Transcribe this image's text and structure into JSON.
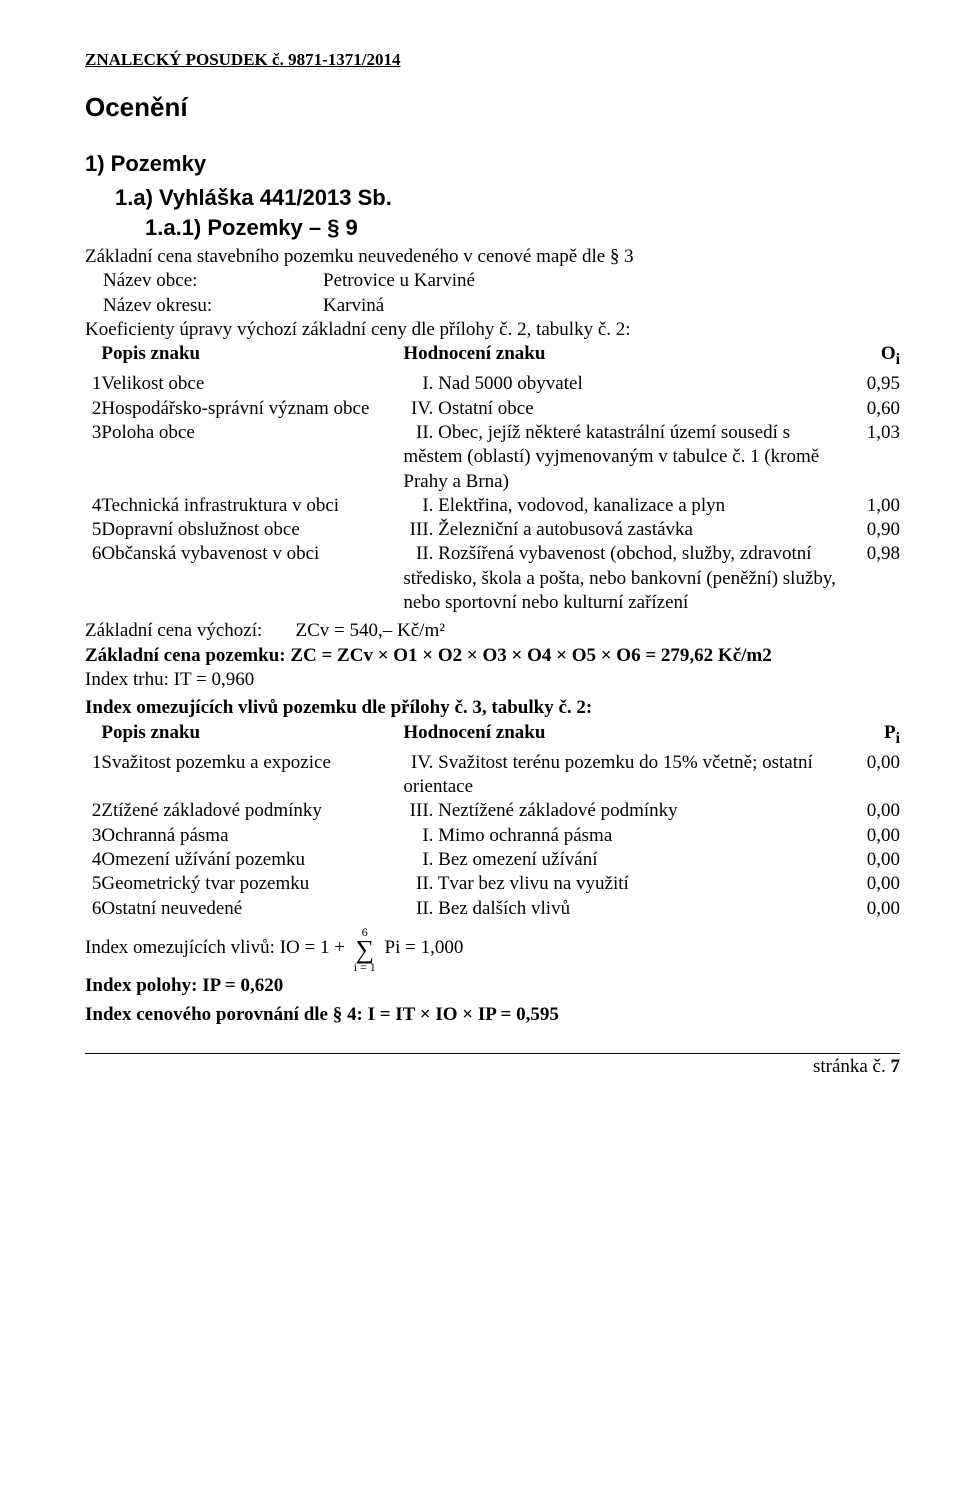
{
  "header": "ZNALECKÝ  POSUDEK č. 9871-1371/2014",
  "h_ocen": "Ocenění",
  "h_section": "1) Pozemky",
  "h_sub": "1.a) Vyhláška 441/2013 Sb.",
  "h_sub2": "1.a.1) Pozemky – § 9",
  "intro": "Základní cena stavebního pozemku neuvedeného v cenové mapě dle § 3",
  "obec_label": "Název obce:",
  "obec_value": "Petrovice u Karviné",
  "okres_label": "Název okresu:",
  "okres_value": "Karviná",
  "koef_line": "Koeficienty úpravy výchozí základní ceny dle přílohy č. 2, tabulky č. 2:",
  "th_popis": "Popis znaku",
  "th_hodn": "Hodnocení znaku",
  "th_oi": "O",
  "th_oi_sub": "i",
  "tab_o": {
    "rows": [
      {
        "idx": "1",
        "desc": "Velikost obce",
        "roman": "I.",
        "rate": "Nad 5000 obyvatel",
        "val": "0,95"
      },
      {
        "idx": "2",
        "desc": "Hospodářsko-správní význam obce",
        "roman": "IV.",
        "rate": "Ostatní obce",
        "val": "0,60"
      },
      {
        "idx": "3",
        "desc": "Poloha obce",
        "roman": "II.",
        "rate": "Obec, jejíž některé katastrální území sousedí s městem (oblastí) vyjmenovaným v tabulce č. 1 (kromě Prahy a Brna)",
        "val": "1,03"
      },
      {
        "idx": "4",
        "desc": "Technická infrastruktura v obci",
        "roman": "I.",
        "rate": "Elektřina, vodovod, kanalizace a plyn",
        "val": "1,00"
      },
      {
        "idx": "5",
        "desc": "Dopravní obslužnost obce",
        "roman": "III.",
        "rate": "Železniční a autobusová zastávka",
        "val": "0,90"
      },
      {
        "idx": "6",
        "desc": "Občanská vybavenost v obci",
        "roman": "II.",
        "rate": "Rozšířená vybavenost (obchod, služby, zdravotní středisko, škola a pošta, nebo bankovní (peněžní) služby, nebo sportovní nebo kulturní zařízení",
        "val": "0,98"
      }
    ]
  },
  "zc_vychod_label": "Základní cena výchozí:",
  "zc_vychod_val": "ZCv = 540,–  Kč/m²",
  "zc_pozemku": "Základní cena pozemku:  ZC = ZCv × O1 × O2 × O3 × O4 × O5 × O6 = 279,62 Kč/m2",
  "it": "Index trhu: IT = 0,960",
  "omez_title": "Index omezujících vlivů pozemku dle přílohy č. 3, tabulky č. 2:",
  "th_pi": "P",
  "th_pi_sub": "i",
  "tab_p": {
    "rows": [
      {
        "idx": "1",
        "desc": "Svažitost pozemku a expozice",
        "roman": "IV.",
        "rate": "Svažitost terénu pozemku do 15% včetně; ostatní orientace",
        "val": "0,00"
      },
      {
        "idx": "2",
        "desc": "Ztížené základové podmínky",
        "roman": "III.",
        "rate": "Neztížené základové podmínky",
        "val": "0,00"
      },
      {
        "idx": "3",
        "desc": "Ochranná pásma",
        "roman": "I.",
        "rate": "Mimo ochranná pásma",
        "val": "0,00"
      },
      {
        "idx": "4",
        "desc": "Omezení užívání pozemku",
        "roman": "I.",
        "rate": "Bez omezení užívání",
        "val": "0,00"
      },
      {
        "idx": "5",
        "desc": "Geometrický tvar pozemku",
        "roman": "II.",
        "rate": "Tvar bez vlivu na využití",
        "val": "0,00"
      },
      {
        "idx": "6",
        "desc": "Ostatní neuvedené",
        "roman": "II.",
        "rate": "Bez dalších vlivů",
        "val": "0,00"
      }
    ]
  },
  "io_before": "Index omezujících vlivů:  IO = 1 + ",
  "io_top": "6",
  "io_bottom": "i = 1",
  "io_after": "Pi = 1,000",
  "ip": "Index polohy: IP = 0,620",
  "final": "Index cenového porovnání dle § 4: I = IT × IO × IP   = 0,595",
  "footer_label": "stránka č.",
  "footer_page": "7"
}
